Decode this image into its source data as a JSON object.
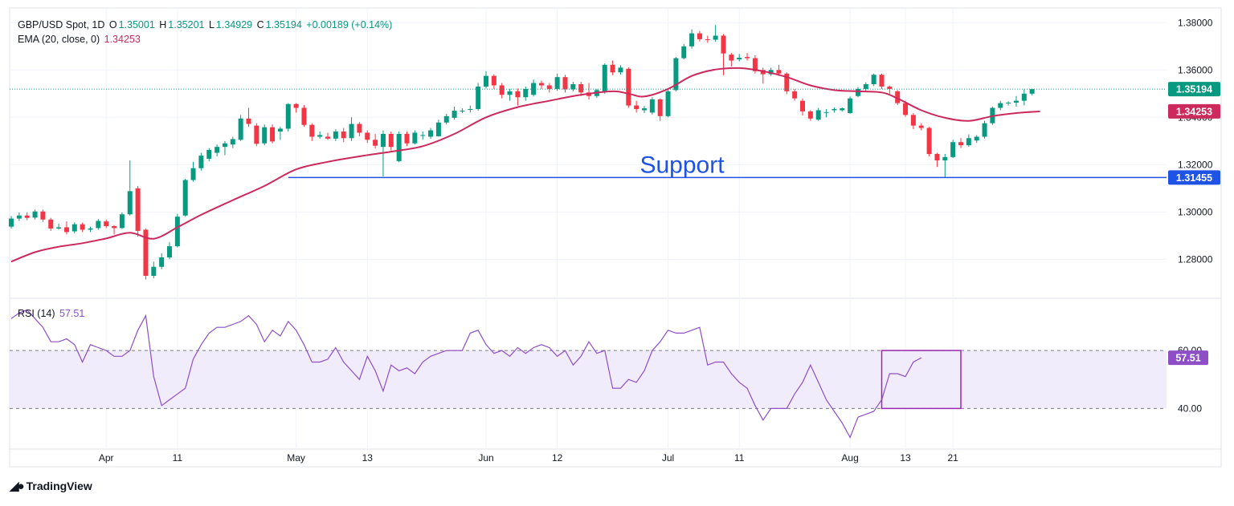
{
  "chart_data": {
    "type": "candlestick",
    "symbol_line": {
      "symbol": "GBP/USD Spot, 1D",
      "open_label": "O",
      "open": "1.35001",
      "high_label": "H",
      "high": "1.35201",
      "low_label": "L",
      "low": "1.34929",
      "close_label": "C",
      "close": "1.35194",
      "change": "+0.00189 (+0.14%)"
    },
    "ema_legend": {
      "label": "EMA (20, close, 0)",
      "value": "1.34253"
    },
    "rsi_legend": {
      "label": "RSI (14)",
      "value": "57.51"
    },
    "price_axis": {
      "ticks": [
        "1.38000",
        "1.36000",
        "1.34000",
        "1.32000",
        "1.30000",
        "1.28000"
      ],
      "tick_values": [
        1.38,
        1.36,
        1.34,
        1.32,
        1.3,
        1.28
      ],
      "range": [
        1.2635,
        1.3862
      ]
    },
    "rsi_axis": {
      "ticks": [
        "60.00",
        "40.00"
      ],
      "tick_values": [
        60,
        40
      ],
      "range": [
        26,
        78
      ]
    },
    "x_axis": {
      "labels": [
        "Apr",
        "11",
        "May",
        "13",
        "Jun",
        "12",
        "Jul",
        "11",
        "Aug",
        "13",
        "21"
      ],
      "label_indices": [
        12,
        21,
        36,
        45,
        60,
        69,
        83,
        92,
        106,
        113,
        119
      ]
    },
    "price_labels": {
      "last": "1.35194",
      "ema": "1.34253",
      "support": "1.31455"
    },
    "support": {
      "label": "Support",
      "level": 1.31455,
      "from_index": 35,
      "to_index": 134
    },
    "rsi_highlight": {
      "from_index": 110,
      "to_index": 120,
      "from_rsi": 40,
      "to_rsi": 60
    },
    "candles": [
      [
        1.2938,
        1.2972,
        1.293,
        1.2983
      ],
      [
        1.2972,
        1.2985,
        1.2962,
        1.2998
      ],
      [
        1.2985,
        1.2975,
        1.2965,
        1.2998
      ],
      [
        1.2976,
        1.3002,
        1.2968,
        1.301
      ],
      [
        1.3002,
        1.2968,
        1.2958,
        1.301
      ],
      [
        1.2968,
        1.293,
        1.292,
        1.2975
      ],
      [
        1.293,
        1.2935,
        1.2925,
        1.295
      ],
      [
        1.2935,
        1.2915,
        1.2905,
        1.296
      ],
      [
        1.2918,
        1.2948,
        1.291,
        1.2956
      ],
      [
        1.2948,
        1.2925,
        1.2915,
        1.2955
      ],
      [
        1.2925,
        1.293,
        1.2915,
        1.2938
      ],
      [
        1.2932,
        1.2962,
        1.2925,
        1.297
      ],
      [
        1.296,
        1.294,
        1.2932,
        1.2968
      ],
      [
        1.294,
        1.2932,
        1.2905,
        1.2945
      ],
      [
        1.2932,
        1.299,
        1.2928,
        1.2998
      ],
      [
        1.299,
        1.3088,
        1.2985,
        1.3218
      ],
      [
        1.31,
        1.292,
        1.2895,
        1.311
      ],
      [
        1.2925,
        1.273,
        1.2715,
        1.293
      ],
      [
        1.273,
        1.2768,
        1.272,
        1.279
      ],
      [
        1.2768,
        1.2808,
        1.2758,
        1.2825
      ],
      [
        1.2808,
        1.2855,
        1.28,
        1.2872
      ],
      [
        1.2855,
        1.298,
        1.285,
        1.2992
      ],
      [
        1.2985,
        1.3135,
        1.298,
        1.314
      ],
      [
        1.3135,
        1.3185,
        1.3128,
        1.3212
      ],
      [
        1.3185,
        1.3238,
        1.3175,
        1.325
      ],
      [
        1.3225,
        1.3262,
        1.3215,
        1.327
      ],
      [
        1.325,
        1.3275,
        1.3235,
        1.3285
      ],
      [
        1.3275,
        1.329,
        1.324,
        1.33
      ],
      [
        1.3285,
        1.3308,
        1.327,
        1.3318
      ],
      [
        1.3305,
        1.3395,
        1.33,
        1.341
      ],
      [
        1.3395,
        1.3372,
        1.336,
        1.344
      ],
      [
        1.3365,
        1.3288,
        1.3278,
        1.3375
      ],
      [
        1.329,
        1.3358,
        1.3282,
        1.337
      ],
      [
        1.3358,
        1.3298,
        1.329,
        1.337
      ],
      [
        1.334,
        1.3352,
        1.3305,
        1.336
      ],
      [
        1.3352,
        1.3456,
        1.334,
        1.346
      ],
      [
        1.3456,
        1.344,
        1.342,
        1.346
      ],
      [
        1.344,
        1.3368,
        1.336,
        1.3452
      ],
      [
        1.3368,
        1.3318,
        1.33,
        1.3375
      ],
      [
        1.3318,
        1.3325,
        1.331,
        1.334
      ],
      [
        1.3318,
        1.331,
        1.3305,
        1.3335
      ],
      [
        1.331,
        1.334,
        1.33,
        1.335
      ],
      [
        1.334,
        1.3312,
        1.3295,
        1.3355
      ],
      [
        1.3312,
        1.3372,
        1.33,
        1.34
      ],
      [
        1.3372,
        1.3335,
        1.332,
        1.338
      ],
      [
        1.3335,
        1.3305,
        1.3292,
        1.3345
      ],
      [
        1.3305,
        1.328,
        1.3268,
        1.333
      ],
      [
        1.3275,
        1.333,
        1.315,
        1.3345
      ],
      [
        1.333,
        1.3275,
        1.326,
        1.334
      ],
      [
        1.3215,
        1.333,
        1.321,
        1.334
      ],
      [
        1.333,
        1.329,
        1.3278,
        1.334
      ],
      [
        1.329,
        1.3335,
        1.3285,
        1.3345
      ],
      [
        1.3325,
        1.3325,
        1.3305,
        1.334
      ],
      [
        1.3318,
        1.3345,
        1.331,
        1.3355
      ],
      [
        1.332,
        1.3378,
        1.3318,
        1.339
      ],
      [
        1.3378,
        1.3405,
        1.337,
        1.3415
      ],
      [
        1.3398,
        1.3428,
        1.339,
        1.3445
      ],
      [
        1.3428,
        1.3428,
        1.3418,
        1.3438
      ],
      [
        1.3432,
        1.3435,
        1.342,
        1.345
      ],
      [
        1.3435,
        1.353,
        1.3428,
        1.3545
      ],
      [
        1.353,
        1.3575,
        1.3522,
        1.3595
      ],
      [
        1.3575,
        1.3535,
        1.352,
        1.3582
      ],
      [
        1.3535,
        1.3495,
        1.348,
        1.3545
      ],
      [
        1.3495,
        1.351,
        1.347,
        1.352
      ],
      [
        1.351,
        1.3485,
        1.345,
        1.3522
      ],
      [
        1.3485,
        1.352,
        1.347,
        1.353
      ],
      [
        1.3495,
        1.3545,
        1.3488,
        1.356
      ],
      [
        1.3545,
        1.3535,
        1.352,
        1.3555
      ],
      [
        1.3535,
        1.352,
        1.3505,
        1.3545
      ],
      [
        1.352,
        1.357,
        1.3512,
        1.3585
      ],
      [
        1.357,
        1.3518,
        1.3505,
        1.358
      ],
      [
        1.3518,
        1.354,
        1.351,
        1.355
      ],
      [
        1.354,
        1.3505,
        1.349,
        1.355
      ],
      [
        1.3505,
        1.349,
        1.3475,
        1.3545
      ],
      [
        1.349,
        1.3515,
        1.3482,
        1.352
      ],
      [
        1.351,
        1.3622,
        1.35,
        1.3628
      ],
      [
        1.3622,
        1.359,
        1.3578,
        1.364
      ],
      [
        1.359,
        1.361,
        1.358,
        1.362
      ],
      [
        1.3605,
        1.345,
        1.344,
        1.3612
      ],
      [
        1.345,
        1.3435,
        1.342,
        1.347
      ],
      [
        1.343,
        1.3438,
        1.3418,
        1.3448
      ],
      [
        1.342,
        1.3476,
        1.3412,
        1.3485
      ],
      [
        1.3476,
        1.3405,
        1.3385,
        1.348
      ],
      [
        1.3405,
        1.351,
        1.34,
        1.352
      ],
      [
        1.3515,
        1.365,
        1.351,
        1.3655
      ],
      [
        1.365,
        1.37,
        1.3645,
        1.371
      ],
      [
        1.37,
        1.3755,
        1.369,
        1.3772
      ],
      [
        1.3755,
        1.373,
        1.372,
        1.3765
      ],
      [
        1.373,
        1.3728,
        1.3715,
        1.3745
      ],
      [
        1.3728,
        1.3745,
        1.372,
        1.379
      ],
      [
        1.3745,
        1.367,
        1.3578,
        1.3752
      ],
      [
        1.3665,
        1.364,
        1.3615,
        1.3672
      ],
      [
        1.3645,
        1.3652,
        1.3636,
        1.3668
      ],
      [
        1.3655,
        1.365,
        1.364,
        1.3672
      ],
      [
        1.365,
        1.3595,
        1.3585,
        1.3662
      ],
      [
        1.36,
        1.3582,
        1.3542,
        1.361
      ],
      [
        1.3582,
        1.36,
        1.3575,
        1.361
      ],
      [
        1.36,
        1.3585,
        1.3575,
        1.3622
      ],
      [
        1.3585,
        1.351,
        1.3498,
        1.359
      ],
      [
        1.351,
        1.348,
        1.347,
        1.352
      ],
      [
        1.347,
        1.3425,
        1.3408,
        1.348
      ],
      [
        1.3425,
        1.3395,
        1.3385,
        1.343
      ],
      [
        1.339,
        1.343,
        1.3385,
        1.344
      ],
      [
        1.342,
        1.3422,
        1.34,
        1.3435
      ],
      [
        1.343,
        1.3435,
        1.342,
        1.3442
      ],
      [
        1.343,
        1.3438,
        1.3425,
        1.3442
      ],
      [
        1.3418,
        1.348,
        1.3415,
        1.3488
      ],
      [
        1.349,
        1.352,
        1.3485,
        1.3528
      ],
      [
        1.352,
        1.354,
        1.351,
        1.3548
      ],
      [
        1.354,
        1.358,
        1.3532,
        1.3585
      ],
      [
        1.358,
        1.353,
        1.352,
        1.3585
      ],
      [
        1.353,
        1.352,
        1.35,
        1.3535
      ],
      [
        1.351,
        1.346,
        1.3452,
        1.3515
      ],
      [
        1.346,
        1.341,
        1.3402,
        1.347
      ],
      [
        1.341,
        1.3365,
        1.335,
        1.3418
      ],
      [
        1.3365,
        1.3355,
        1.3345,
        1.3375
      ],
      [
        1.3355,
        1.3245,
        1.3235,
        1.336
      ],
      [
        1.3245,
        1.3218,
        1.319,
        1.325
      ],
      [
        1.3218,
        1.3232,
        1.3145,
        1.3245
      ],
      [
        1.3232,
        1.3295,
        1.3228,
        1.3305
      ],
      [
        1.3295,
        1.3282,
        1.327,
        1.3312
      ],
      [
        1.3282,
        1.3312,
        1.3275,
        1.3328
      ],
      [
        1.3302,
        1.3318,
        1.3292,
        1.3325
      ],
      [
        1.3318,
        1.3375,
        1.331,
        1.3385
      ],
      [
        1.3375,
        1.344,
        1.3368,
        1.3445
      ],
      [
        1.344,
        1.346,
        1.343,
        1.347
      ],
      [
        1.346,
        1.3462,
        1.345,
        1.3468
      ],
      [
        1.3462,
        1.347,
        1.3445,
        1.349
      ],
      [
        1.347,
        1.35,
        1.345,
        1.3518
      ],
      [
        1.35,
        1.3519,
        1.3493,
        1.352
      ]
    ],
    "ema_anchors": [
      [
        0,
        1.279
      ],
      [
        3,
        1.283
      ],
      [
        6,
        1.2853
      ],
      [
        9,
        1.2868
      ],
      [
        12,
        1.2888
      ],
      [
        15,
        1.2912
      ],
      [
        18,
        1.2887
      ],
      [
        21,
        1.2935
      ],
      [
        24,
        1.2988
      ],
      [
        28,
        1.305
      ],
      [
        32,
        1.311
      ],
      [
        36,
        1.318
      ],
      [
        40,
        1.3212
      ],
      [
        44,
        1.3235
      ],
      [
        48,
        1.3255
      ],
      [
        52,
        1.3278
      ],
      [
        56,
        1.333
      ],
      [
        60,
        1.34
      ],
      [
        64,
        1.3443
      ],
      [
        68,
        1.347
      ],
      [
        72,
        1.3495
      ],
      [
        76,
        1.351
      ],
      [
        78,
        1.35
      ],
      [
        80,
        1.3488
      ],
      [
        83,
        1.352
      ],
      [
        86,
        1.3575
      ],
      [
        89,
        1.3602
      ],
      [
        92,
        1.3608
      ],
      [
        95,
        1.3595
      ],
      [
        98,
        1.357
      ],
      [
        101,
        1.3535
      ],
      [
        104,
        1.3515
      ],
      [
        107,
        1.351
      ],
      [
        110,
        1.3505
      ],
      [
        112,
        1.348
      ],
      [
        115,
        1.343
      ],
      [
        118,
        1.3398
      ],
      [
        121,
        1.3385
      ],
      [
        124,
        1.3405
      ],
      [
        127,
        1.3418
      ],
      [
        130,
        1.3425
      ]
    ],
    "rsi": [
      71,
      73,
      74,
      71,
      68,
      63,
      63,
      64,
      62,
      56,
      62,
      61,
      60,
      58,
      58,
      60,
      67,
      72,
      51,
      41,
      43,
      45,
      47,
      57,
      62,
      66,
      68,
      68,
      69,
      70,
      72,
      69,
      63,
      67,
      65,
      70,
      67,
      62,
      56,
      56,
      57,
      61,
      56,
      53,
      50,
      58,
      53,
      46,
      55,
      53,
      54,
      52,
      56,
      58,
      59,
      60,
      60,
      60,
      66,
      67,
      62,
      59,
      60,
      58,
      61,
      59,
      61,
      62,
      61,
      58,
      60,
      55,
      58,
      63,
      59,
      60,
      47,
      47,
      50,
      49,
      53,
      60,
      63,
      67,
      66,
      66,
      67,
      68,
      55,
      56,
      56,
      52,
      49,
      47,
      41,
      36,
      40,
      40,
      40,
      45,
      49,
      55,
      49,
      43,
      39,
      35,
      30,
      37,
      38,
      39,
      43,
      52,
      52,
      51,
      56,
      57.51
    ],
    "colors": {
      "up": "#089981",
      "down": "#f23645",
      "ema": "#cc2a5c",
      "rsi": "#8e4fc6",
      "support": "#1e53e5",
      "last_line": "#089981",
      "rsi_band": "#f1ecfb",
      "grid": "#f0f3fa"
    }
  },
  "brand": {
    "name": "TradingView",
    "icon": "tradingview-logo-icon"
  }
}
